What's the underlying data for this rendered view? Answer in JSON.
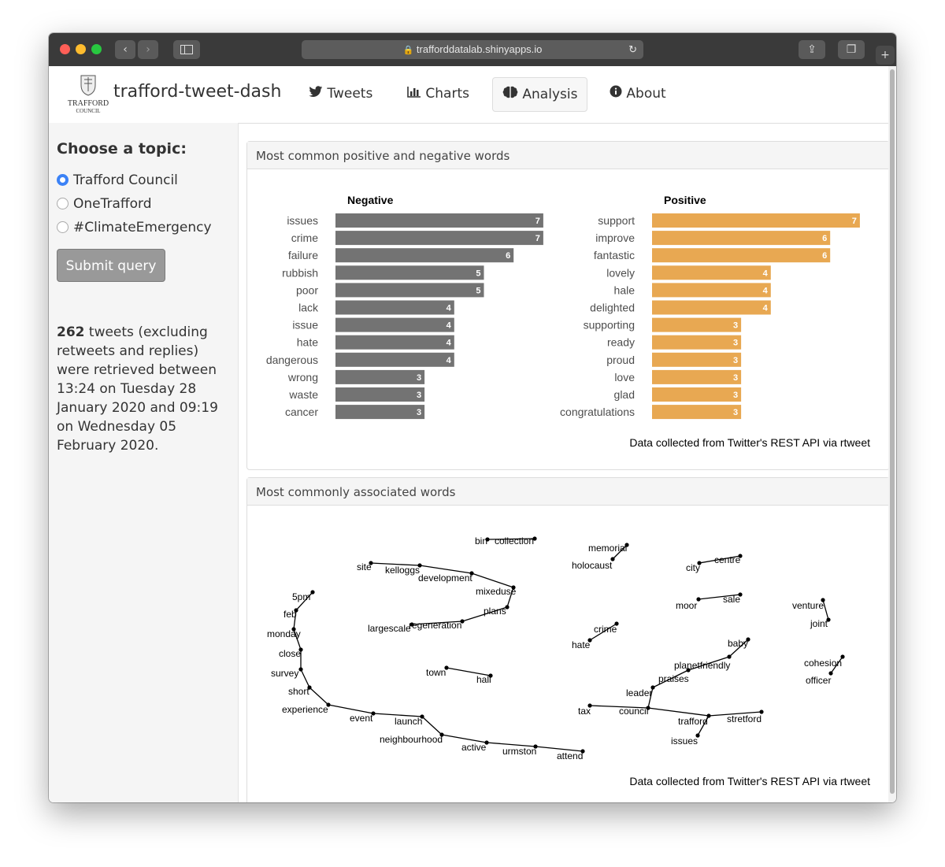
{
  "browser": {
    "url": "trafforddatalab.shinyapps.io"
  },
  "header": {
    "logo_line1": "TRAFFORD",
    "logo_line2": "COUNCIL",
    "app_title": "trafford-tweet-dash",
    "nav": [
      {
        "label": "Tweets",
        "icon": "twitter-icon"
      },
      {
        "label": "Charts",
        "icon": "bar-chart-icon"
      },
      {
        "label": "Analysis",
        "icon": "brain-icon",
        "active": true
      },
      {
        "label": "About",
        "icon": "info-icon"
      }
    ]
  },
  "sidebar": {
    "heading": "Choose a topic:",
    "topics": [
      "Trafford Council",
      "OneTrafford",
      "#ClimateEmergency"
    ],
    "selected_topic": "Trafford Council",
    "submit_label": "Submit query",
    "tweet_count": "262",
    "summary_text": "tweets (excluding retweets and replies) were retrieved between 13:24 on Tuesday 28 January 2020 and 09:19 on Wednesday 05 February 2020."
  },
  "panels": {
    "sentiment_title": "Most common positive and negative words",
    "network_title": "Most commonly associated words"
  },
  "chart_data": [
    {
      "type": "bar",
      "title": "Negative",
      "orientation": "horizontal",
      "color": "#737373",
      "categories": [
        "issues",
        "crime",
        "failure",
        "rubbish",
        "poor",
        "lack",
        "issue",
        "hate",
        "dangerous",
        "wrong",
        "waste",
        "cancer"
      ],
      "values": [
        7,
        7,
        6,
        5,
        5,
        4,
        4,
        4,
        4,
        3,
        3,
        3
      ],
      "caption": "Data collected from Twitter's REST API via rtweet"
    },
    {
      "type": "bar",
      "title": "Positive",
      "orientation": "horizontal",
      "color": "#E8A852",
      "categories": [
        "support",
        "improve",
        "fantastic",
        "lovely",
        "hale",
        "delighted",
        "supporting",
        "ready",
        "proud",
        "love",
        "glad",
        "congratulations"
      ],
      "values": [
        7,
        6,
        6,
        4,
        4,
        4,
        3,
        3,
        3,
        3,
        3,
        3
      ],
      "caption": "Data collected from Twitter's REST API via rtweet"
    }
  ],
  "network": {
    "words": [
      "bin",
      "collection",
      "memorial",
      "holocaust",
      "city",
      "centre",
      "site",
      "kelloggs",
      "development",
      "mixeduse",
      "plans",
      "regeneration",
      "largescale",
      "5pm",
      "feb",
      "monday",
      "close",
      "survey",
      "short",
      "experience",
      "event",
      "launch",
      "neighbourhood",
      "active",
      "urmston",
      "attend",
      "town",
      "hall",
      "moor",
      "sale",
      "venture",
      "joint",
      "crime",
      "hate",
      "baby",
      "planetfriendly",
      "praises",
      "leader",
      "tax",
      "council",
      "trafford",
      "stretford",
      "issues",
      "cohesion",
      "officer"
    ],
    "caption": "Data collected from Twitter's REST API via rtweet"
  }
}
